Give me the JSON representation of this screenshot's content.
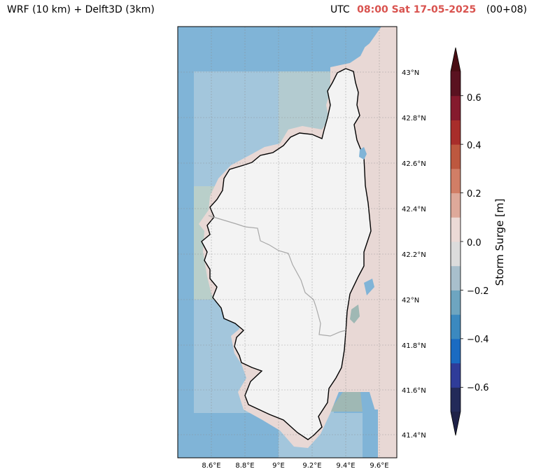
{
  "title_left": "WRF (10 km) + Delft3D (3km)",
  "title_right": {
    "prefix": "UTC",
    "time": "08:00 Sat 17-05-2025",
    "lead": "(00+08)"
  },
  "map": {
    "lon_labels": [
      "8.6°E",
      "8.8°E",
      "9°E",
      "9.2°E",
      "9.4°E",
      "9.6°E"
    ],
    "lat_labels": [
      "43°N",
      "42.8°N",
      "42.6°N",
      "42.4°N",
      "42.2°N",
      "42°N",
      "41.8°N",
      "41.6°N",
      "41.4°N"
    ],
    "lon_values": [
      8.6,
      8.8,
      9.0,
      9.2,
      9.4,
      9.6
    ],
    "lat_values": [
      43.0,
      42.8,
      42.6,
      42.4,
      42.2,
      42.0,
      41.8,
      41.6,
      41.4
    ],
    "extent": {
      "lon_min": 8.4,
      "lon_max": 9.7,
      "lat_min": 41.3,
      "lat_max": 43.2
    },
    "colors": {
      "sea_west": "#80b4d7",
      "sea_west_inner": "#a5c8dc",
      "sea_east": "#e8d8d5",
      "coast_band": "#e8d8d5",
      "land": "#f3f3f3",
      "coastline": "#000000"
    }
  },
  "colorbar": {
    "label": "Storm Surge [m]",
    "tick_labels": [
      "0.6",
      "0.4",
      "0.2",
      "0.0",
      "−0.2",
      "−0.4",
      "−0.6"
    ],
    "tick_values": [
      0.6,
      0.4,
      0.2,
      0.0,
      -0.2,
      -0.4,
      -0.6
    ],
    "range": [
      -0.7,
      0.7
    ],
    "colors": [
      "#232a59",
      "#2f3c99",
      "#1a6bc2",
      "#3b89bf",
      "#6ea5c0",
      "#a8bfcc",
      "#dcdcdc",
      "#ecdad6",
      "#dea99a",
      "#d17e66",
      "#bd583f",
      "#a82d2a",
      "#851a2d",
      "#5a1220"
    ],
    "extend_low": "#1f2248",
    "extend_high": "#4a0e14"
  }
}
